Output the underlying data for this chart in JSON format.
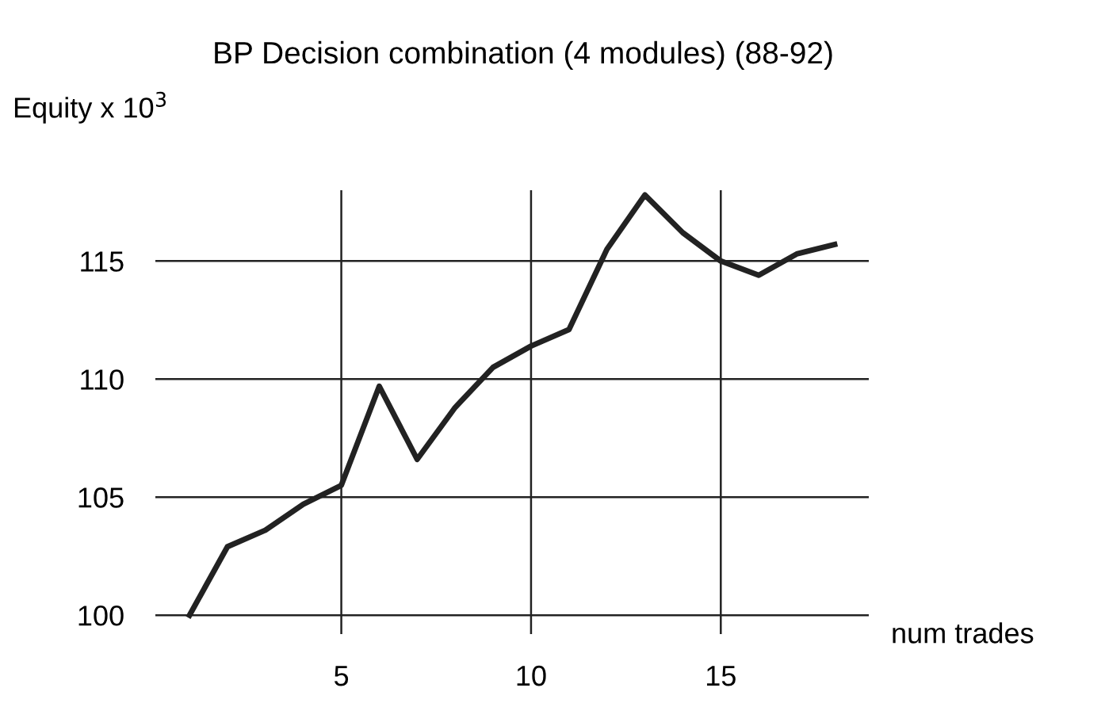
{
  "chart_data": {
    "type": "line",
    "title": "BP Decision combination (4 modules) (88-92)",
    "ylabel": "Equity x 10$^{3}$",
    "xlabel": "num trades",
    "x": [
      1,
      2,
      3,
      4,
      5,
      6,
      7,
      8,
      9,
      10,
      11,
      12,
      13,
      14,
      15,
      16,
      17,
      18
    ],
    "series": [
      {
        "color": "#222222",
        "values": [
          100,
          102.9,
          103.6,
          104.7,
          105.5,
          109.7,
          106.6,
          108.8,
          110.5,
          111.4,
          112.1,
          115.5,
          117.8,
          116.2,
          115,
          114.4,
          115.3,
          115.7
        ]
      }
    ],
    "xlim": [
      0.1,
      18.9
    ],
    "ylim": [
      99.2,
      118
    ],
    "xticks": [
      5,
      10,
      15
    ],
    "yticks": [
      100,
      105,
      110,
      115
    ],
    "grid": true,
    "legend": false,
    "marker": "none",
    "line_style": "solid"
  }
}
